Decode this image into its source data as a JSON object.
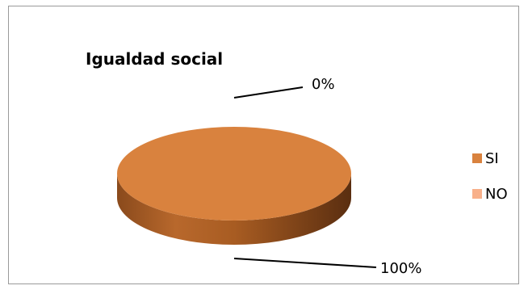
{
  "chart_data": {
    "type": "pie",
    "title": "Igualdad social",
    "categories": [
      "SI",
      "NO"
    ],
    "values": [
      100,
      0
    ],
    "data_labels": [
      "100%",
      "0%"
    ],
    "colors": {
      "SI": "#D9823E",
      "NO": "#F8B08A"
    },
    "legend_position": "right",
    "style": "3d"
  }
}
